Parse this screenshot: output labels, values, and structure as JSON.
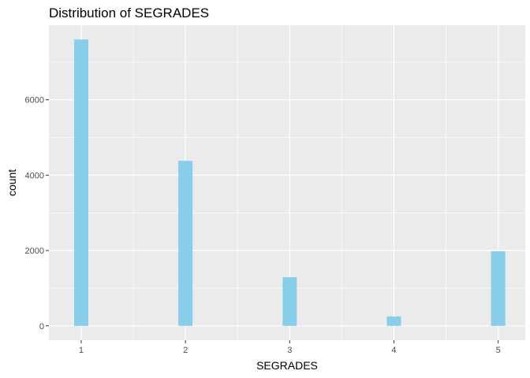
{
  "chart_data": {
    "type": "bar",
    "title": "Distribution of SEGRADES",
    "xlabel": "SEGRADES",
    "ylabel": "count",
    "categories": [
      1,
      2,
      3,
      4,
      5
    ],
    "values": [
      7600,
      4380,
      1290,
      250,
      1980
    ],
    "x_ticks": [
      "1",
      "2",
      "3",
      "4",
      "5"
    ],
    "y_ticks": [
      0,
      2000,
      4000,
      6000
    ],
    "xlim": [
      0.69,
      5.26
    ],
    "ylim": [
      -380,
      7980
    ],
    "grid": true,
    "legend": "none",
    "colors": {
      "panel_background": "#EBEBEB",
      "grid_line": "#FFFFFF",
      "bar_fill": "#87CEEB",
      "tick_label": "#4D4D4D",
      "tick_mark": "#333333"
    }
  }
}
